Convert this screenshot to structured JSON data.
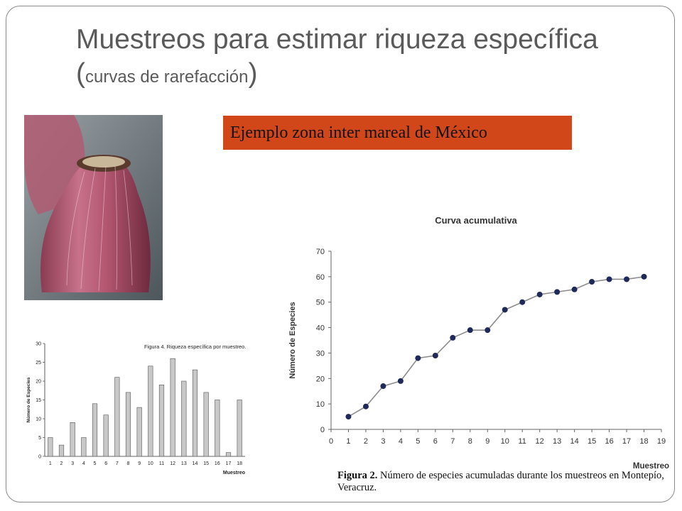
{
  "slide": {
    "title_main": "Muestreos para estimar riqueza específica (",
    "title_sub": "curvas de rarefacción",
    "title_close": ")",
    "example_label": "Ejemplo zona inter mareal de México",
    "accent_color": "#d24719"
  },
  "photo": {
    "icon": "barnacle-photo"
  },
  "fig2_caption": {
    "label": "Figura 2.",
    "text": "Número de especies acumuladas durante los muestreos en Montepío, Veracruz."
  },
  "chart_data": [
    {
      "type": "bar",
      "title": "Figura 4. Riqueza específica por muestreo.",
      "xlabel": "Muestreo",
      "ylabel": "Número de Especies",
      "categories": [
        "1",
        "2",
        "3",
        "4",
        "5",
        "6",
        "7",
        "8",
        "9",
        "10",
        "11",
        "12",
        "13",
        "14",
        "15",
        "16",
        "17",
        "18"
      ],
      "values": [
        5,
        3,
        9,
        5,
        14,
        11,
        21,
        17,
        13,
        24,
        19,
        26,
        20,
        23,
        17,
        15,
        1,
        15
      ],
      "ylim": [
        0,
        30
      ],
      "yticks": [
        0,
        5,
        10,
        15,
        20,
        25,
        30
      ],
      "bar_color": "#c8c8c8"
    },
    {
      "type": "line",
      "title": "Curva acumulativa",
      "xlabel": "Muestreo",
      "ylabel": "Número de Especies",
      "x": [
        1,
        2,
        3,
        4,
        5,
        6,
        7,
        8,
        9,
        10,
        11,
        12,
        13,
        14,
        15,
        16,
        17,
        18
      ],
      "y": [
        5,
        9,
        17,
        19,
        28,
        29,
        36,
        39,
        39,
        47,
        50,
        53,
        54,
        55,
        58,
        59,
        59,
        60
      ],
      "xlim": [
        0,
        19
      ],
      "ylim": [
        0,
        70
      ],
      "xticks": [
        0,
        1,
        2,
        3,
        4,
        5,
        6,
        7,
        8,
        9,
        10,
        11,
        12,
        13,
        14,
        15,
        16,
        17,
        18,
        19
      ],
      "yticks": [
        0,
        10,
        20,
        30,
        40,
        50,
        60,
        70
      ],
      "line_color": "#8c8c8c",
      "marker_color": "#1f2a5a",
      "grid": false
    }
  ]
}
